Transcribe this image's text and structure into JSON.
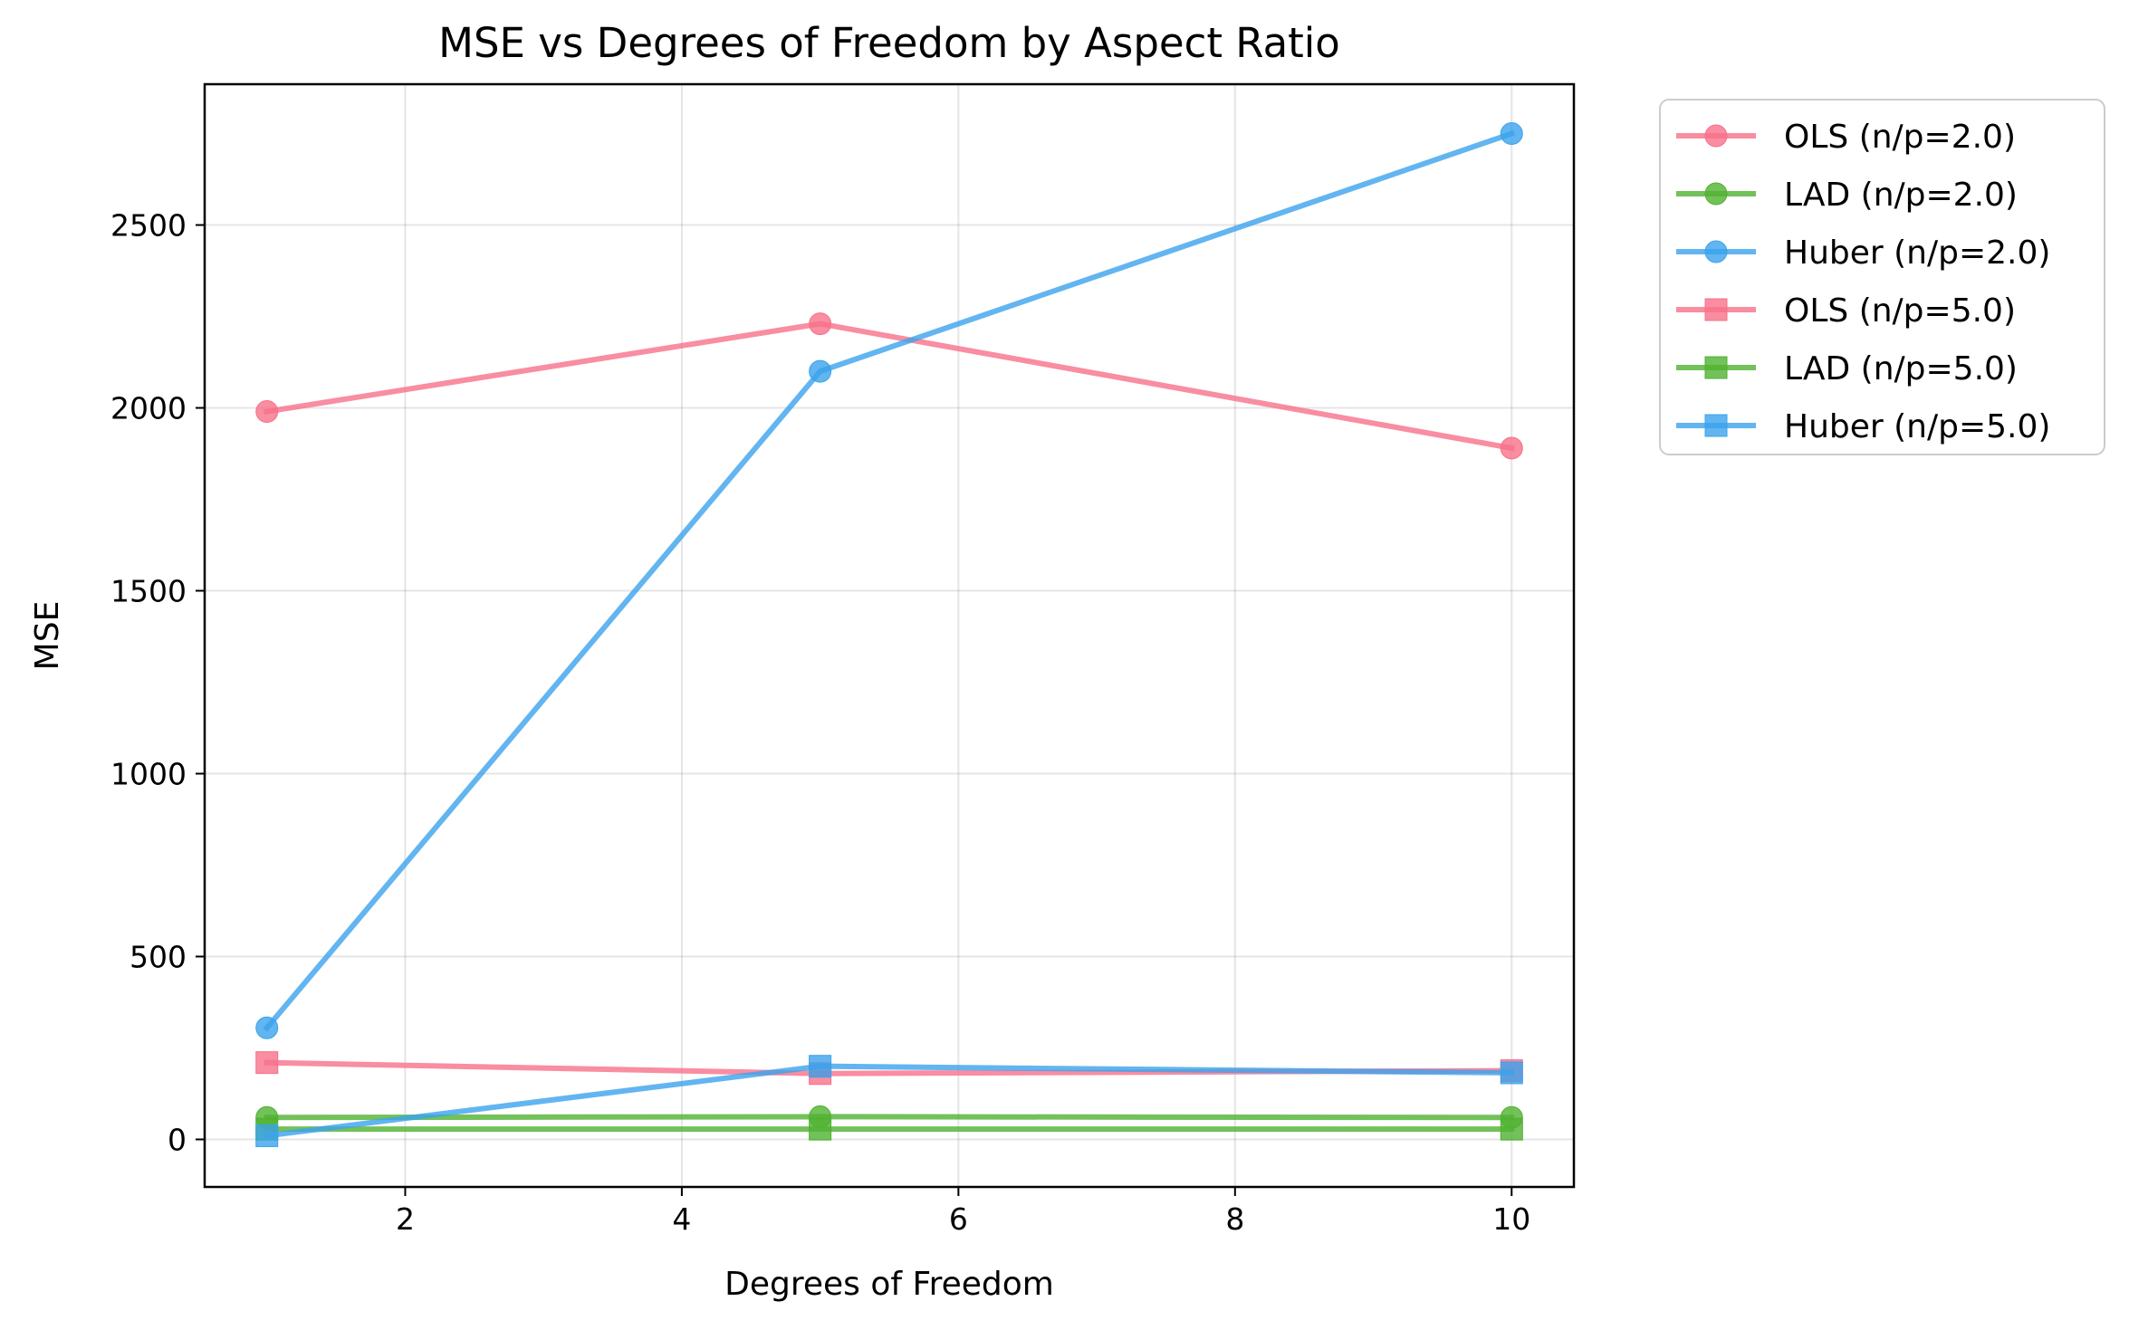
{
  "chart_data": {
    "type": "line",
    "title": "MSE vs Degrees of Freedom by Aspect Ratio",
    "xlabel": "Degrees of Freedom",
    "ylabel": "MSE",
    "x": [
      1,
      5,
      10
    ],
    "xlim": [
      0.55,
      10.45
    ],
    "ylim": [
      -130,
      2885
    ],
    "xticks": [
      2,
      4,
      6,
      8,
      10
    ],
    "yticks": [
      0,
      500,
      1000,
      1500,
      2000,
      2500
    ],
    "grid": true,
    "legend_position": "outside upper right",
    "series": [
      {
        "name": "OLS (n/p=2.0)",
        "color": "#f77189",
        "marker": "circle",
        "values": [
          1990,
          2230,
          1890
        ]
      },
      {
        "name": "LAD (n/p=2.0)",
        "color": "#50b131",
        "marker": "circle",
        "values": [
          60,
          62,
          60
        ]
      },
      {
        "name": "Huber (n/p=2.0)",
        "color": "#3ba3ec",
        "marker": "circle",
        "values": [
          305,
          2100,
          2750
        ]
      },
      {
        "name": "OLS (n/p=5.0)",
        "color": "#f77189",
        "marker": "square",
        "values": [
          210,
          180,
          188
        ]
      },
      {
        "name": "LAD (n/p=5.0)",
        "color": "#50b131",
        "marker": "square",
        "values": [
          28,
          28,
          28
        ]
      },
      {
        "name": "Huber (n/p=5.0)",
        "color": "#3ba3ec",
        "marker": "square",
        "values": [
          10,
          200,
          182
        ]
      }
    ]
  }
}
